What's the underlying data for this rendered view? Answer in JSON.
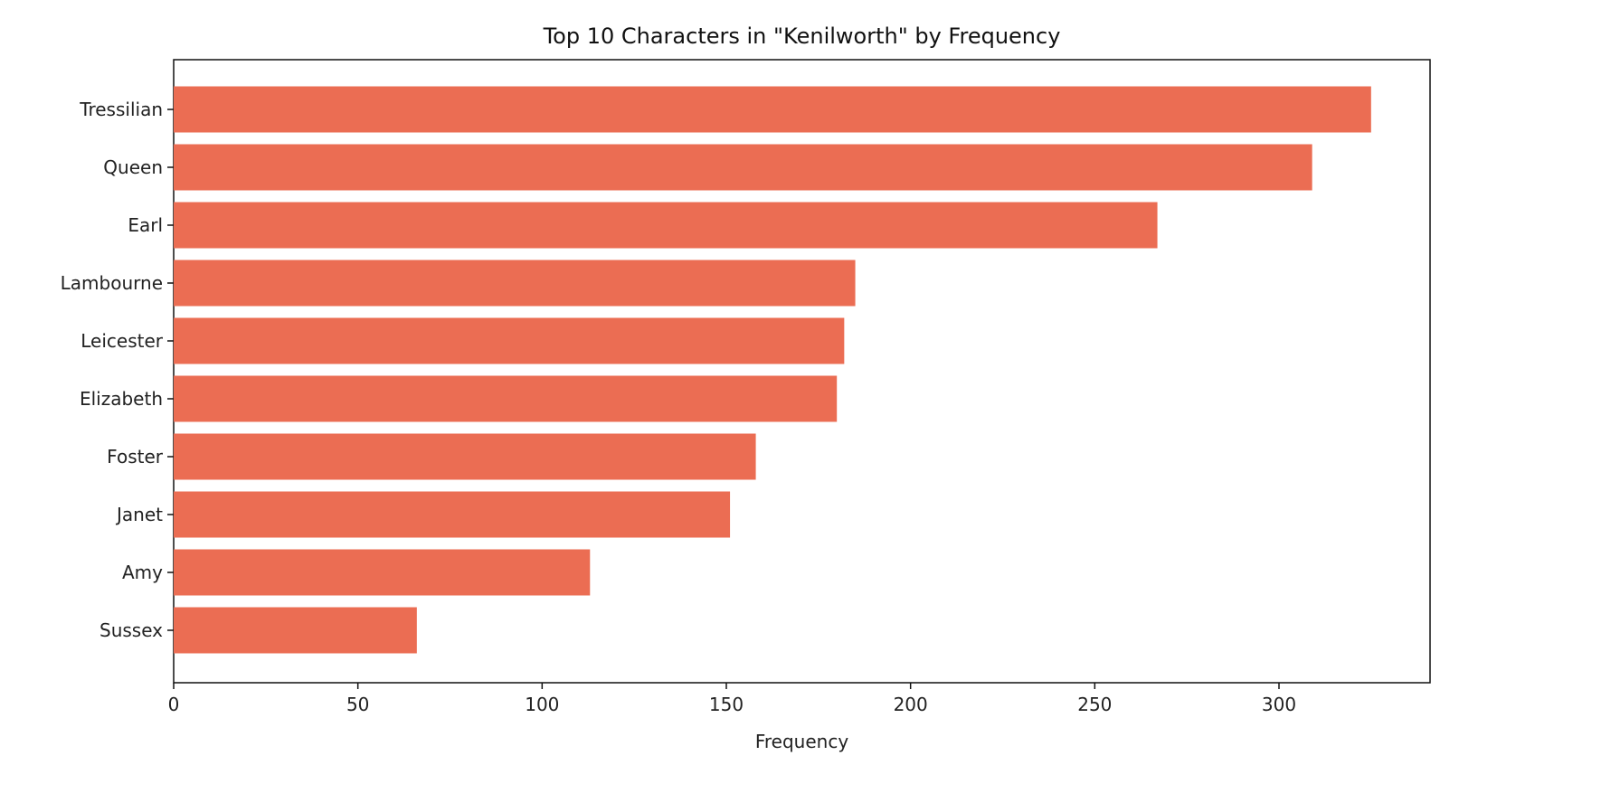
{
  "chart_data": {
    "type": "bar",
    "orientation": "horizontal",
    "title": "Top 10 Characters in \"Kenilworth\" by Frequency",
    "xlabel": "Frequency",
    "ylabel": "",
    "categories": [
      "Tressilian",
      "Queen",
      "Earl",
      "Lambourne",
      "Leicester",
      "Elizabeth",
      "Foster",
      "Janet",
      "Amy",
      "Sussex"
    ],
    "values": [
      325,
      309,
      267,
      185,
      182,
      180,
      158,
      151,
      113,
      66
    ],
    "xlim": [
      0,
      341
    ],
    "xticks": [
      0,
      50,
      100,
      150,
      200,
      250,
      300
    ],
    "bar_color": "#eb6d53",
    "grid": false,
    "legend": "none"
  }
}
